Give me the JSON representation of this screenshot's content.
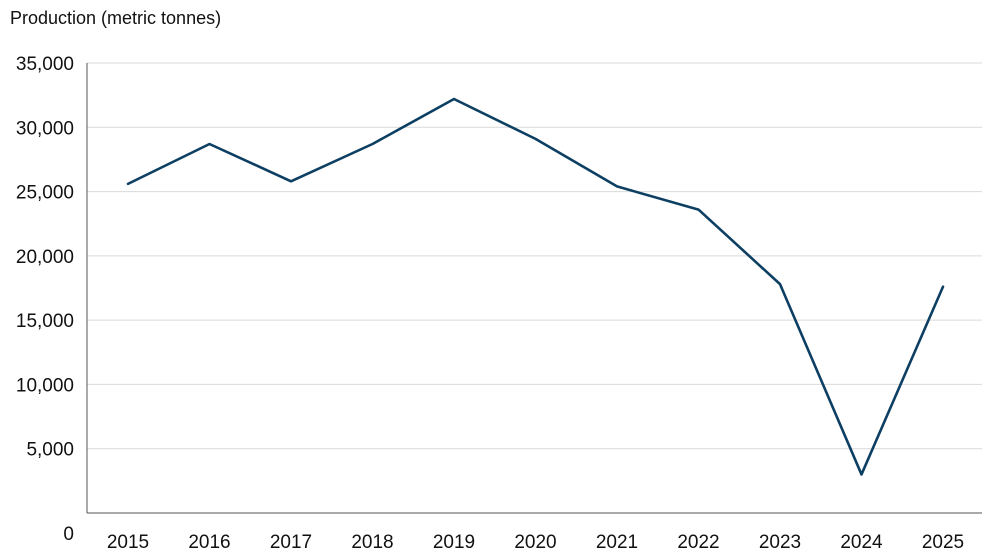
{
  "chart_data": {
    "type": "line",
    "ylabel": "Production (metric tonnes)",
    "xlabel": "",
    "x": [
      "2015",
      "2016",
      "2017",
      "2018",
      "2019",
      "2020",
      "2021",
      "2022",
      "2023",
      "2024",
      "2025"
    ],
    "series": [
      {
        "name": "",
        "values": [
          25600,
          28700,
          25800,
          28700,
          32200,
          29100,
          25400,
          23600,
          17800,
          3000,
          17600
        ],
        "color": "#0d3f63"
      }
    ],
    "ylim": [
      0,
      35000
    ],
    "yticks": [
      0,
      5000,
      10000,
      15000,
      20000,
      25000,
      30000,
      35000
    ],
    "ytick_labels": [
      "0",
      "5,000",
      "10,000",
      "15,000",
      "20,000",
      "25,000",
      "30,000",
      "35,000"
    ],
    "grid": true,
    "legend": "none"
  }
}
